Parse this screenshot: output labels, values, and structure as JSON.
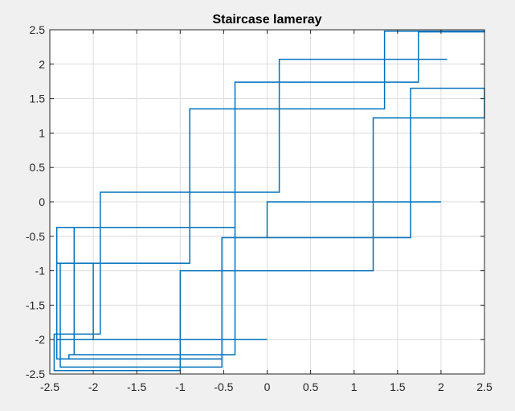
{
  "chart_data": {
    "type": "line",
    "title": "Staircase lameray",
    "xlabel": "",
    "ylabel": "",
    "xlim": [
      -2.5,
      2.5
    ],
    "ylim": [
      -2.5,
      2.5
    ],
    "xticks": [
      -2.5,
      -2,
      -1.5,
      -1,
      -0.5,
      0,
      0.5,
      1,
      1.5,
      2,
      2.5
    ],
    "yticks": [
      -2.5,
      -2,
      -1.5,
      -1,
      -0.5,
      0,
      0.5,
      1,
      1.5,
      2,
      2.5
    ],
    "xtick_labels": [
      "-2.5",
      "-2",
      "-1.5",
      "-1",
      "-0.5",
      "0",
      "0.5",
      "1",
      "1.5",
      "2",
      "2.5"
    ],
    "ytick_labels": [
      "-2.5",
      "-2",
      "-1.5",
      "-1",
      "-0.5",
      "0",
      "0.5",
      "1",
      "1.5",
      "2",
      "2.5"
    ],
    "grid": true,
    "series": [
      {
        "color": "#0072bd",
        "x": [
          2.0,
          0.0,
          0.0,
          -0.52,
          -0.52,
          -2.42,
          -2.42,
          -2.22,
          -2.22,
          -0.37,
          -0.37,
          0.14,
          0.14,
          2.07,
          2.07,
          0.14,
          0.14,
          -1.92,
          -1.92,
          -2.45,
          -2.45,
          -1.0,
          -1.0,
          1.22,
          1.22,
          2.5,
          2.5,
          1.65,
          1.65,
          -0.52,
          -0.52,
          -2.38,
          -2.38,
          -2.0,
          -2.0,
          0.0,
          0.0,
          -2.42,
          -2.42,
          -0.89,
          -0.89,
          1.35,
          1.35,
          2.5,
          2.5,
          1.74,
          1.74,
          -0.37,
          -0.37,
          -2.22,
          -2.22,
          -2.28,
          -2.28,
          -2.0
        ],
        "y": [
          0.0,
          0.0,
          -0.52,
          -0.52,
          -2.28,
          -2.28,
          -0.37,
          -0.37,
          -2.22,
          -2.22,
          1.74,
          1.74,
          2.07,
          2.07,
          2.07,
          2.07,
          0.14,
          0.14,
          -1.92,
          -1.92,
          -2.45,
          -2.45,
          -1.0,
          -1.0,
          1.22,
          1.22,
          1.65,
          1.65,
          -0.52,
          -0.52,
          -2.4,
          -2.4,
          -0.89,
          -0.89,
          -2.0,
          -2.0,
          -2.0,
          -2.0,
          -0.89,
          -0.89,
          1.35,
          1.35,
          2.48,
          2.48,
          2.47,
          2.47,
          1.74,
          1.74,
          -0.37,
          -0.37,
          -2.22,
          -2.22,
          -2.28,
          -2.28
        ]
      }
    ]
  }
}
